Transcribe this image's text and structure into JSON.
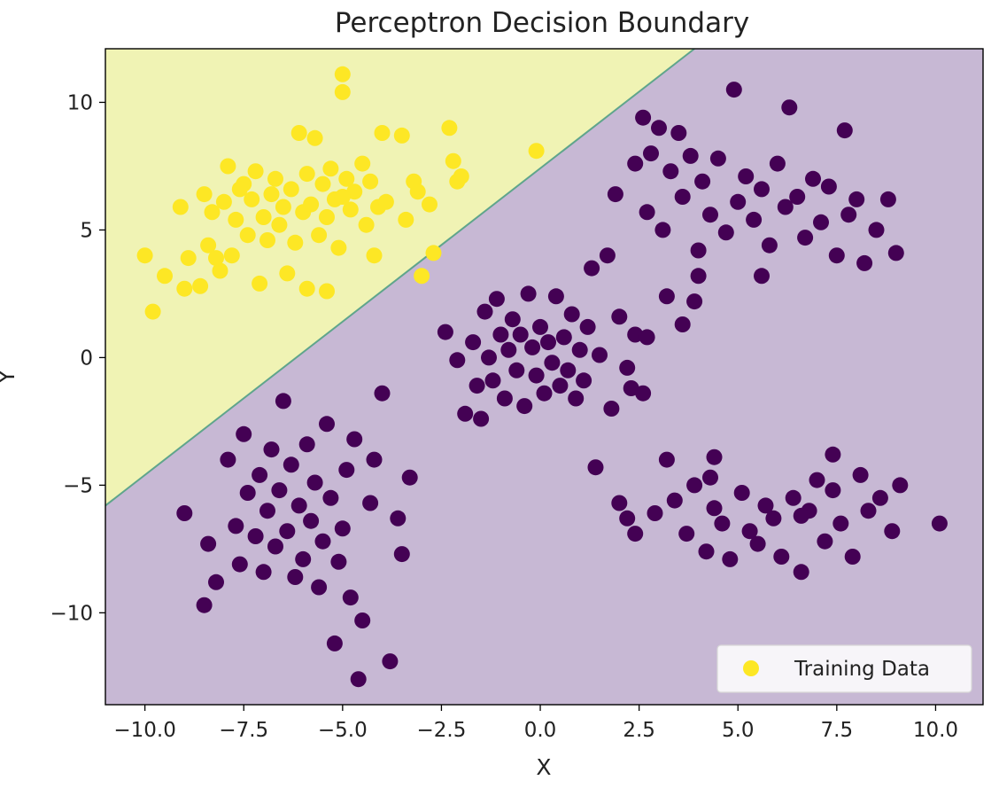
{
  "chart_data": {
    "type": "scatter",
    "title": "Perceptron Decision Boundary",
    "xlabel": "X",
    "ylabel": "Y",
    "xlim": [
      -11.0,
      11.2
    ],
    "ylim": [
      -13.6,
      12.1
    ],
    "xticks": [
      -10.0,
      -7.5,
      -5.0,
      -2.5,
      0.0,
      2.5,
      5.0,
      7.5,
      10.0
    ],
    "xtick_labels": [
      "−10.0",
      "−7.5",
      "−5.0",
      "−2.5",
      "0.0",
      "2.5",
      "5.0",
      "7.5",
      "10.0"
    ],
    "yticks": [
      10,
      5,
      0,
      -5,
      -10
    ],
    "ytick_labels": [
      "10",
      "5",
      "0",
      "−5",
      "−10"
    ],
    "grid": false,
    "legend": {
      "position": "bottom-right",
      "entries": [
        "Training Data"
      ]
    },
    "decision_boundary": {
      "points": [
        [
          -11.0,
          -5.8
        ],
        [
          3.9,
          12.1
        ]
      ],
      "region_colors": {
        "positive": "#f0f3b4",
        "negative": "#c7b8d4"
      }
    },
    "colors": {
      "class_1": "#fde725",
      "class_0": "#440154",
      "boundary": "#5fa58c"
    },
    "series": [
      {
        "name": "Training Data",
        "class_labels": [
          1,
          0
        ],
        "clusters": [
          {
            "label": 1,
            "points": [
              [
                -10.0,
                4.0
              ],
              [
                -9.8,
                1.8
              ],
              [
                -9.5,
                3.2
              ],
              [
                -9.1,
                5.9
              ],
              [
                -9.0,
                2.7
              ],
              [
                -8.9,
                3.9
              ],
              [
                -8.6,
                2.8
              ],
              [
                -8.5,
                6.4
              ],
              [
                -8.3,
                5.7
              ],
              [
                -8.4,
                4.4
              ],
              [
                -8.1,
                3.4
              ],
              [
                -8.0,
                6.1
              ],
              [
                -7.9,
                7.5
              ],
              [
                -7.8,
                4.0
              ],
              [
                -7.7,
                5.4
              ],
              [
                -7.5,
                6.8
              ],
              [
                -7.4,
                4.8
              ],
              [
                -7.3,
                6.2
              ],
              [
                -7.2,
                7.3
              ],
              [
                -7.0,
                5.5
              ],
              [
                -6.9,
                4.6
              ],
              [
                -6.8,
                6.4
              ],
              [
                -6.7,
                7.0
              ],
              [
                -6.6,
                5.2
              ],
              [
                -6.4,
                3.3
              ],
              [
                -6.3,
                6.6
              ],
              [
                -6.2,
                4.5
              ],
              [
                -6.1,
                8.8
              ],
              [
                -6.0,
                5.7
              ],
              [
                -5.9,
                2.7
              ],
              [
                -5.9,
                7.2
              ],
              [
                -5.8,
                6.0
              ],
              [
                -5.7,
                8.6
              ],
              [
                -5.6,
                4.8
              ],
              [
                -5.5,
                6.8
              ],
              [
                -5.4,
                2.6
              ],
              [
                -5.4,
                5.5
              ],
              [
                -5.3,
                7.4
              ],
              [
                -5.2,
                6.2
              ],
              [
                -5.1,
                4.3
              ],
              [
                -5.0,
                11.1
              ],
              [
                -5.0,
                10.4
              ],
              [
                -4.9,
                7.0
              ],
              [
                -4.8,
                5.8
              ],
              [
                -4.7,
                6.5
              ],
              [
                -4.5,
                7.6
              ],
              [
                -4.4,
                5.2
              ],
              [
                -4.3,
                6.9
              ],
              [
                -4.2,
                4.0
              ],
              [
                -4.1,
                5.9
              ],
              [
                -4.0,
                8.8
              ],
              [
                -3.9,
                6.1
              ],
              [
                -3.5,
                8.7
              ],
              [
                -3.4,
                5.4
              ],
              [
                -3.2,
                6.9
              ],
              [
                -3.1,
                6.5
              ],
              [
                -3.0,
                3.2
              ],
              [
                -2.8,
                6.0
              ],
              [
                -2.7,
                4.1
              ],
              [
                -2.3,
                9.0
              ],
              [
                -2.2,
                7.7
              ],
              [
                -2.1,
                6.9
              ],
              [
                -2.0,
                7.1
              ],
              [
                -0.1,
                8.1
              ],
              [
                -7.6,
                6.6
              ],
              [
                -6.5,
                5.9
              ],
              [
                -5.0,
                6.3
              ],
              [
                -8.2,
                3.9
              ],
              [
                -7.1,
                2.9
              ]
            ]
          },
          {
            "label": 0,
            "points": [
              [
                -9.0,
                -6.1
              ],
              [
                -8.5,
                -9.7
              ],
              [
                -8.4,
                -7.3
              ],
              [
                -8.2,
                -8.8
              ],
              [
                -7.9,
                -4.0
              ],
              [
                -7.7,
                -6.6
              ],
              [
                -7.6,
                -8.1
              ],
              [
                -7.5,
                -3.0
              ],
              [
                -7.4,
                -5.3
              ],
              [
                -7.2,
                -7.0
              ],
              [
                -7.1,
                -4.6
              ],
              [
                -7.0,
                -8.4
              ],
              [
                -6.9,
                -6.0
              ],
              [
                -6.8,
                -3.6
              ],
              [
                -6.7,
                -7.4
              ],
              [
                -6.6,
                -5.2
              ],
              [
                -6.5,
                -1.7
              ],
              [
                -6.4,
                -6.8
              ],
              [
                -6.3,
                -4.2
              ],
              [
                -6.2,
                -8.6
              ],
              [
                -6.1,
                -5.8
              ],
              [
                -6.0,
                -7.9
              ],
              [
                -5.9,
                -3.4
              ],
              [
                -5.8,
                -6.4
              ],
              [
                -5.7,
                -4.9
              ],
              [
                -5.6,
                -9.0
              ],
              [
                -5.5,
                -7.2
              ],
              [
                -5.4,
                -2.6
              ],
              [
                -5.3,
                -5.5
              ],
              [
                -5.2,
                -11.2
              ],
              [
                -5.1,
                -8.0
              ],
              [
                -5.0,
                -6.7
              ],
              [
                -4.9,
                -4.4
              ],
              [
                -4.8,
                -9.4
              ],
              [
                -4.7,
                -3.2
              ],
              [
                -4.6,
                -12.6
              ],
              [
                -4.5,
                -10.3
              ],
              [
                -4.3,
                -5.7
              ],
              [
                -4.2,
                -4.0
              ],
              [
                -4.0,
                -1.4
              ],
              [
                -3.8,
                -11.9
              ],
              [
                -3.6,
                -6.3
              ],
              [
                -3.5,
                -7.7
              ],
              [
                -3.3,
                -4.7
              ],
              [
                -2.4,
                1.0
              ],
              [
                -2.1,
                -0.1
              ],
              [
                -1.9,
                -2.2
              ],
              [
                -1.7,
                0.6
              ],
              [
                -1.6,
                -1.1
              ],
              [
                -1.5,
                -2.4
              ],
              [
                -1.4,
                1.8
              ],
              [
                -1.3,
                0.0
              ],
              [
                -1.2,
                -0.9
              ],
              [
                -1.1,
                2.3
              ],
              [
                -1.0,
                0.9
              ],
              [
                -0.9,
                -1.6
              ],
              [
                -0.8,
                0.3
              ],
              [
                -0.7,
                1.5
              ],
              [
                -0.6,
                -0.5
              ],
              [
                -0.5,
                0.9
              ],
              [
                -0.4,
                -1.9
              ],
              [
                -0.3,
                2.5
              ],
              [
                -0.2,
                0.4
              ],
              [
                -0.1,
                -0.7
              ],
              [
                0.0,
                1.2
              ],
              [
                0.1,
                -1.4
              ],
              [
                0.2,
                0.6
              ],
              [
                0.3,
                -0.2
              ],
              [
                0.4,
                2.4
              ],
              [
                0.5,
                -1.1
              ],
              [
                0.6,
                0.8
              ],
              [
                0.7,
                -0.5
              ],
              [
                0.8,
                1.7
              ],
              [
                0.9,
                -1.6
              ],
              [
                1.0,
                0.3
              ],
              [
                1.1,
                -0.9
              ],
              [
                1.2,
                1.2
              ],
              [
                1.3,
                3.5
              ],
              [
                1.4,
                -4.3
              ],
              [
                1.5,
                0.1
              ],
              [
                1.7,
                4.0
              ],
              [
                1.8,
                -2.0
              ],
              [
                2.0,
                1.6
              ],
              [
                2.2,
                -0.4
              ],
              [
                2.3,
                -1.2
              ],
              [
                2.4,
                0.9
              ],
              [
                2.6,
                -1.4
              ],
              [
                2.7,
                0.8
              ],
              [
                1.9,
                6.4
              ],
              [
                2.0,
                -5.7
              ],
              [
                2.2,
                -6.3
              ],
              [
                2.4,
                -6.9
              ],
              [
                2.4,
                7.6
              ],
              [
                2.6,
                9.4
              ],
              [
                2.7,
                5.7
              ],
              [
                2.8,
                8.0
              ],
              [
                2.9,
                -6.1
              ],
              [
                3.0,
                9.0
              ],
              [
                3.1,
                5.0
              ],
              [
                3.2,
                -4.0
              ],
              [
                3.3,
                7.3
              ],
              [
                3.4,
                -5.6
              ],
              [
                3.5,
                8.8
              ],
              [
                3.6,
                6.3
              ],
              [
                3.7,
                -6.9
              ],
              [
                3.8,
                7.9
              ],
              [
                3.9,
                -5.0
              ],
              [
                4.0,
                4.2
              ],
              [
                4.1,
                6.9
              ],
              [
                4.2,
                -7.6
              ],
              [
                4.3,
                5.6
              ],
              [
                4.4,
                -5.9
              ],
              [
                4.5,
                7.8
              ],
              [
                4.6,
                -6.5
              ],
              [
                4.7,
                4.9
              ],
              [
                4.8,
                -7.9
              ],
              [
                4.9,
                10.5
              ],
              [
                5.0,
                6.1
              ],
              [
                5.1,
                -5.3
              ],
              [
                5.2,
                7.1
              ],
              [
                5.3,
                -6.8
              ],
              [
                5.4,
                5.4
              ],
              [
                5.5,
                -7.3
              ],
              [
                5.6,
                6.6
              ],
              [
                5.7,
                -5.8
              ],
              [
                5.8,
                4.4
              ],
              [
                5.9,
                -6.3
              ],
              [
                6.0,
                7.6
              ],
              [
                6.1,
                -7.8
              ],
              [
                6.2,
                5.9
              ],
              [
                6.3,
                9.8
              ],
              [
                6.4,
                -5.5
              ],
              [
                6.5,
                6.3
              ],
              [
                6.6,
                -8.4
              ],
              [
                6.7,
                4.7
              ],
              [
                6.8,
                -6.0
              ],
              [
                6.9,
                7.0
              ],
              [
                7.0,
                -4.8
              ],
              [
                7.1,
                5.3
              ],
              [
                7.2,
                -7.2
              ],
              [
                7.3,
                6.7
              ],
              [
                7.4,
                -5.2
              ],
              [
                7.5,
                4.0
              ],
              [
                7.6,
                -6.5
              ],
              [
                7.7,
                8.9
              ],
              [
                7.8,
                5.6
              ],
              [
                7.9,
                -7.8
              ],
              [
                8.0,
                6.2
              ],
              [
                8.1,
                -4.6
              ],
              [
                8.2,
                3.7
              ],
              [
                8.3,
                -6.0
              ],
              [
                8.5,
                5.0
              ],
              [
                8.6,
                -5.5
              ],
              [
                8.8,
                6.2
              ],
              [
                8.9,
                -6.8
              ],
              [
                9.0,
                4.1
              ],
              [
                9.1,
                -5.0
              ],
              [
                10.1,
                -6.5
              ],
              [
                3.9,
                2.2
              ],
              [
                3.6,
                1.3
              ],
              [
                3.2,
                2.4
              ],
              [
                4.0,
                3.2
              ],
              [
                4.4,
                -3.9
              ],
              [
                4.3,
                -4.7
              ],
              [
                5.6,
                3.2
              ],
              [
                6.6,
                -6.2
              ],
              [
                7.4,
                -3.8
              ]
            ]
          }
        ]
      }
    ]
  }
}
